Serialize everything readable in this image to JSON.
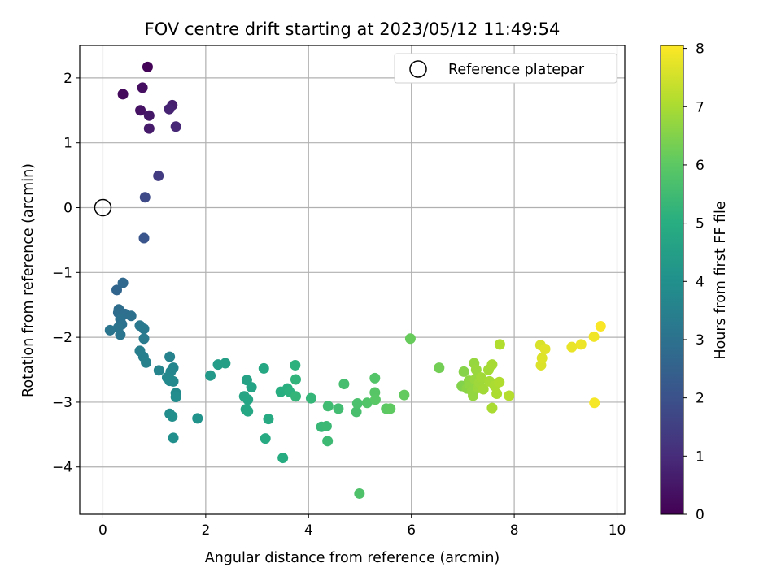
{
  "chart_data": {
    "type": "scatter",
    "title": "FOV centre drift starting at 2023/05/12 11:49:54",
    "xlabel": "Angular distance from reference (arcmin)",
    "ylabel": "Rotation from reference (arcmin)",
    "xlim": [
      -0.45,
      10.15
    ],
    "ylim": [
      -4.73,
      2.5
    ],
    "xticks": [
      0,
      2,
      4,
      6,
      8,
      10
    ],
    "yticks": [
      -4,
      -3,
      -2,
      -1,
      0,
      1,
      2
    ],
    "xtick_labels": [
      "0",
      "2",
      "4",
      "6",
      "8",
      "10"
    ],
    "ytick_labels": [
      "−4",
      "−3",
      "−2",
      "−1",
      "0",
      "1",
      "2"
    ],
    "grid": true,
    "colormap": "viridis",
    "colorbar": {
      "label": "Hours from first FF file",
      "range": [
        0,
        8.05
      ],
      "ticks": [
        0,
        1,
        2,
        3,
        4,
        5,
        6,
        7,
        8
      ],
      "tick_labels": [
        "0",
        "1",
        "2",
        "3",
        "4",
        "5",
        "6",
        "7",
        "8"
      ]
    },
    "legend": {
      "position": "top-right",
      "entries": [
        "Reference platepar"
      ]
    },
    "reference_point": {
      "x": 0,
      "y": 0
    },
    "points": [
      {
        "x": 0.87,
        "y": 2.17,
        "c": 0.1
      },
      {
        "x": 0.39,
        "y": 1.75,
        "c": 0.2
      },
      {
        "x": 0.77,
        "y": 1.85,
        "c": 0.3
      },
      {
        "x": 0.73,
        "y": 1.5,
        "c": 0.4
      },
      {
        "x": 0.9,
        "y": 1.42,
        "c": 0.5
      },
      {
        "x": 0.9,
        "y": 1.22,
        "c": 0.6
      },
      {
        "x": 1.35,
        "y": 1.58,
        "c": 0.7
      },
      {
        "x": 1.29,
        "y": 1.52,
        "c": 0.8
      },
      {
        "x": 1.42,
        "y": 1.25,
        "c": 0.9
      },
      {
        "x": 1.08,
        "y": 0.49,
        "c": 1.4
      },
      {
        "x": 0.82,
        "y": 0.16,
        "c": 1.8
      },
      {
        "x": 0.8,
        "y": -0.47,
        "c": 2.1
      },
      {
        "x": 0.27,
        "y": -1.27,
        "c": 2.6
      },
      {
        "x": 0.39,
        "y": -1.16,
        "c": 2.7
      },
      {
        "x": 0.3,
        "y": -1.62,
        "c": 2.8
      },
      {
        "x": 0.31,
        "y": -1.57,
        "c": 2.85
      },
      {
        "x": 0.43,
        "y": -1.64,
        "c": 2.9
      },
      {
        "x": 0.55,
        "y": -1.67,
        "c": 2.95
      },
      {
        "x": 0.34,
        "y": -1.72,
        "c": 3.0
      },
      {
        "x": 0.37,
        "y": -1.8,
        "c": 3.0
      },
      {
        "x": 0.3,
        "y": -1.85,
        "c": 3.05
      },
      {
        "x": 0.14,
        "y": -1.89,
        "c": 3.1
      },
      {
        "x": 0.34,
        "y": -1.96,
        "c": 3.15
      },
      {
        "x": 0.72,
        "y": -1.82,
        "c": 3.2
      },
      {
        "x": 0.8,
        "y": -1.87,
        "c": 3.25
      },
      {
        "x": 0.8,
        "y": -2.02,
        "c": 3.3
      },
      {
        "x": 0.72,
        "y": -2.21,
        "c": 3.4
      },
      {
        "x": 0.79,
        "y": -2.3,
        "c": 3.45
      },
      {
        "x": 0.84,
        "y": -2.39,
        "c": 3.5
      },
      {
        "x": 1.3,
        "y": -2.3,
        "c": 3.55
      },
      {
        "x": 1.09,
        "y": -2.51,
        "c": 3.6
      },
      {
        "x": 1.37,
        "y": -2.47,
        "c": 3.65
      },
      {
        "x": 1.32,
        "y": -2.53,
        "c": 3.7
      },
      {
        "x": 1.25,
        "y": -2.62,
        "c": 3.72
      },
      {
        "x": 1.3,
        "y": -2.67,
        "c": 3.75
      },
      {
        "x": 1.37,
        "y": -2.68,
        "c": 3.78
      },
      {
        "x": 1.42,
        "y": -2.86,
        "c": 3.8
      },
      {
        "x": 1.42,
        "y": -2.92,
        "c": 3.85
      },
      {
        "x": 1.3,
        "y": -3.18,
        "c": 3.9
      },
      {
        "x": 1.35,
        "y": -3.22,
        "c": 3.95
      },
      {
        "x": 1.37,
        "y": -3.55,
        "c": 4.0
      },
      {
        "x": 1.84,
        "y": -3.25,
        "c": 4.1
      },
      {
        "x": 2.09,
        "y": -2.59,
        "c": 4.3
      },
      {
        "x": 2.24,
        "y": -2.42,
        "c": 4.4
      },
      {
        "x": 2.38,
        "y": -2.4,
        "c": 4.5
      },
      {
        "x": 2.8,
        "y": -2.66,
        "c": 4.6
      },
      {
        "x": 2.89,
        "y": -2.77,
        "c": 4.65
      },
      {
        "x": 2.75,
        "y": -2.91,
        "c": 4.7
      },
      {
        "x": 2.82,
        "y": -2.96,
        "c": 4.72
      },
      {
        "x": 2.78,
        "y": -3.11,
        "c": 4.75
      },
      {
        "x": 2.82,
        "y": -3.14,
        "c": 4.78
      },
      {
        "x": 3.13,
        "y": -2.48,
        "c": 4.8
      },
      {
        "x": 3.22,
        "y": -3.26,
        "c": 4.85
      },
      {
        "x": 3.16,
        "y": -3.56,
        "c": 4.9
      },
      {
        "x": 3.5,
        "y": -3.86,
        "c": 4.95
      },
      {
        "x": 3.46,
        "y": -2.84,
        "c": 5.0
      },
      {
        "x": 3.59,
        "y": -2.79,
        "c": 5.05
      },
      {
        "x": 3.63,
        "y": -2.84,
        "c": 5.1
      },
      {
        "x": 3.74,
        "y": -2.43,
        "c": 5.15
      },
      {
        "x": 3.75,
        "y": -2.65,
        "c": 5.2
      },
      {
        "x": 3.75,
        "y": -2.91,
        "c": 5.25
      },
      {
        "x": 4.05,
        "y": -2.94,
        "c": 5.3
      },
      {
        "x": 4.25,
        "y": -3.38,
        "c": 5.35
      },
      {
        "x": 4.35,
        "y": -3.37,
        "c": 5.4
      },
      {
        "x": 4.37,
        "y": -3.6,
        "c": 5.45
      },
      {
        "x": 4.38,
        "y": -3.06,
        "c": 5.5
      },
      {
        "x": 4.58,
        "y": -3.1,
        "c": 5.55
      },
      {
        "x": 4.69,
        "y": -2.72,
        "c": 5.6
      },
      {
        "x": 4.93,
        "y": -3.15,
        "c": 5.65
      },
      {
        "x": 4.95,
        "y": -3.02,
        "c": 5.7
      },
      {
        "x": 4.99,
        "y": -4.41,
        "c": 5.75
      },
      {
        "x": 5.14,
        "y": -3.01,
        "c": 5.8
      },
      {
        "x": 5.29,
        "y": -2.63,
        "c": 5.85
      },
      {
        "x": 5.29,
        "y": -2.85,
        "c": 5.9
      },
      {
        "x": 5.3,
        "y": -2.96,
        "c": 5.95
      },
      {
        "x": 5.51,
        "y": -3.1,
        "c": 6.0
      },
      {
        "x": 5.59,
        "y": -3.1,
        "c": 6.05
      },
      {
        "x": 5.86,
        "y": -2.89,
        "c": 6.1
      },
      {
        "x": 5.98,
        "y": -2.02,
        "c": 6.15
      },
      {
        "x": 6.54,
        "y": -2.47,
        "c": 6.3
      },
      {
        "x": 6.98,
        "y": -2.75,
        "c": 6.5
      },
      {
        "x": 7.02,
        "y": -2.53,
        "c": 6.55
      },
      {
        "x": 7.08,
        "y": -2.79,
        "c": 6.6
      },
      {
        "x": 7.12,
        "y": -2.67,
        "c": 6.65
      },
      {
        "x": 7.14,
        "y": -2.73,
        "c": 6.68
      },
      {
        "x": 7.18,
        "y": -2.83,
        "c": 6.7
      },
      {
        "x": 7.2,
        "y": -2.9,
        "c": 6.72
      },
      {
        "x": 7.22,
        "y": -2.4,
        "c": 6.75
      },
      {
        "x": 7.24,
        "y": -2.65,
        "c": 6.78
      },
      {
        "x": 7.26,
        "y": -2.5,
        "c": 6.8
      },
      {
        "x": 7.3,
        "y": -2.78,
        "c": 6.82
      },
      {
        "x": 7.32,
        "y": -2.7,
        "c": 6.85
      },
      {
        "x": 7.36,
        "y": -2.62,
        "c": 6.88
      },
      {
        "x": 7.4,
        "y": -2.8,
        "c": 6.9
      },
      {
        "x": 7.5,
        "y": -2.5,
        "c": 6.92
      },
      {
        "x": 7.52,
        "y": -2.68,
        "c": 6.95
      },
      {
        "x": 7.57,
        "y": -2.42,
        "c": 6.97
      },
      {
        "x": 7.57,
        "y": -3.09,
        "c": 7.0
      },
      {
        "x": 7.62,
        "y": -2.75,
        "c": 7.02
      },
      {
        "x": 7.66,
        "y": -2.87,
        "c": 7.05
      },
      {
        "x": 7.71,
        "y": -2.69,
        "c": 7.08
      },
      {
        "x": 7.72,
        "y": -2.11,
        "c": 7.1
      },
      {
        "x": 7.9,
        "y": -2.9,
        "c": 7.15
      },
      {
        "x": 8.51,
        "y": -2.12,
        "c": 7.6
      },
      {
        "x": 8.52,
        "y": -2.43,
        "c": 7.62
      },
      {
        "x": 8.54,
        "y": -2.32,
        "c": 7.65
      },
      {
        "x": 8.6,
        "y": -2.18,
        "c": 7.68
      },
      {
        "x": 9.12,
        "y": -2.15,
        "c": 7.8
      },
      {
        "x": 9.3,
        "y": -2.11,
        "c": 7.85
      },
      {
        "x": 9.55,
        "y": -1.99,
        "c": 7.9
      },
      {
        "x": 9.56,
        "y": -3.01,
        "c": 7.95
      },
      {
        "x": 9.68,
        "y": -1.83,
        "c": 8.0
      }
    ]
  }
}
